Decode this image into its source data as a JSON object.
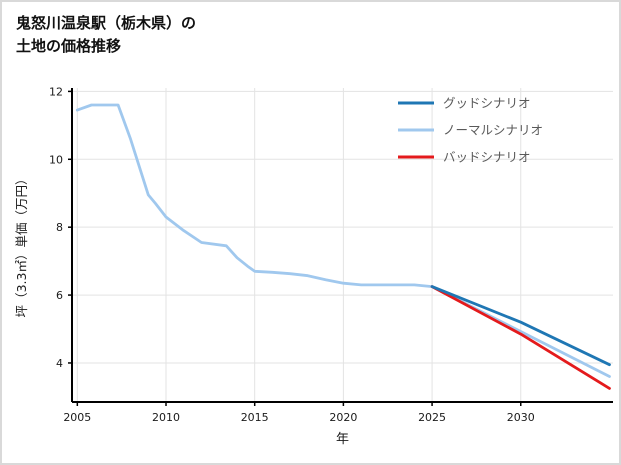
{
  "header": {
    "title_line1": "鬼怒川温泉駅（栃木県）の",
    "title_line2": "土地の価格推移"
  },
  "chart_data": {
    "type": "line",
    "title": "鬼怒川温泉駅（栃木県）の土地の価格推移",
    "xlabel": "年",
    "ylabel": "坪（3.3㎡）単価（万円）",
    "xlim": [
      2004.7,
      2035.2
    ],
    "ylim": [
      2.85,
      12.1
    ],
    "xticks": [
      2005,
      2010,
      2015,
      2020,
      2025,
      2030
    ],
    "yticks": [
      4,
      6,
      8,
      10,
      12
    ],
    "grid": true,
    "legend_position": "top-right",
    "colors": {
      "grid": "#e3e3e3",
      "axis": "#000000",
      "tick_label": "#1a1a1a",
      "legend_text": "#595959",
      "good": "#1f77b4",
      "normal": "#a0c8ee",
      "bad": "#e41a1c"
    },
    "series": [
      {
        "key": "good",
        "name": "グッドシナリオ",
        "color": "#1f77b4",
        "x": [
          2025,
          2030,
          2035
        ],
        "y": [
          6.25,
          5.2,
          3.95
        ]
      },
      {
        "key": "normal",
        "name": "ノーマルシナリオ",
        "color": "#a0c8ee",
        "x": [
          2005,
          2005.8,
          2007.3,
          2008,
          2009,
          2009.4,
          2010,
          2011,
          2012,
          2013.4,
          2014,
          2014.6,
          2015,
          2016,
          2017,
          2018,
          2019,
          2020,
          2021,
          2022,
          2023,
          2024,
          2025,
          2035
        ],
        "y": [
          11.45,
          11.6,
          11.6,
          10.6,
          8.95,
          8.7,
          8.3,
          7.9,
          7.55,
          7.45,
          7.1,
          6.85,
          6.7,
          6.67,
          6.63,
          6.57,
          6.45,
          6.35,
          6.3,
          6.3,
          6.3,
          6.3,
          6.25,
          3.6
        ]
      },
      {
        "key": "bad",
        "name": "バッドシナリオ",
        "color": "#e41a1c",
        "x": [
          2025,
          2030,
          2035
        ],
        "y": [
          6.25,
          4.85,
          3.25
        ]
      }
    ]
  }
}
